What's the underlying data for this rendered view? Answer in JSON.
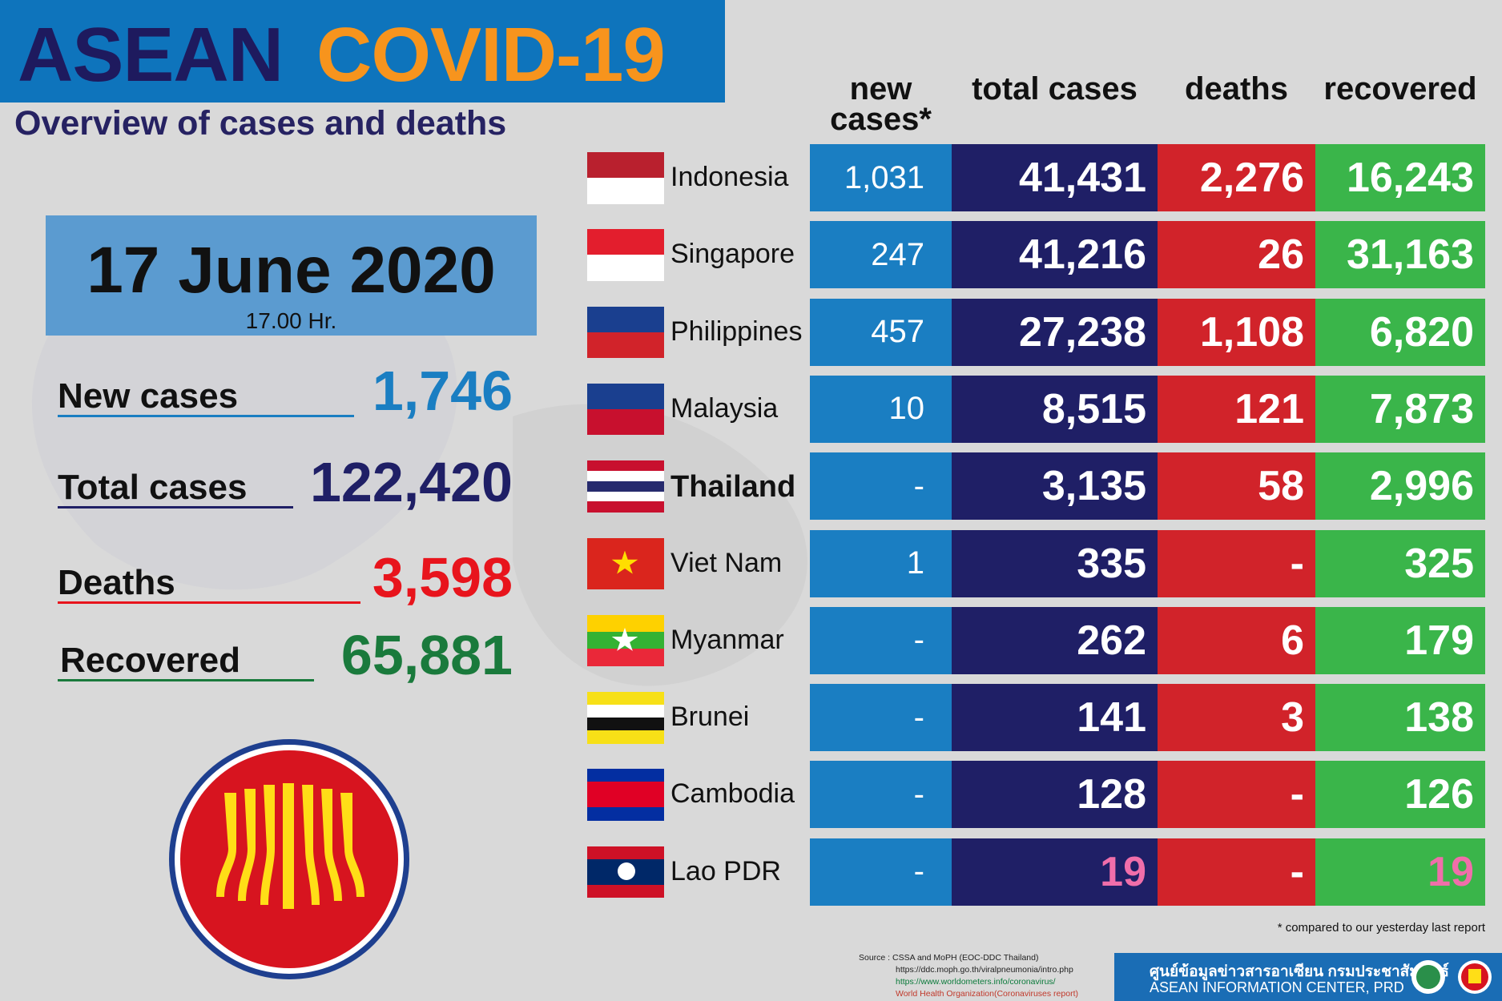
{
  "header": {
    "title_main": "ASEAN",
    "title_accent": "COVID-19",
    "subtitle": "Overview of cases and deaths"
  },
  "date": {
    "day": "17 June 2020",
    "time": "17.00 Hr."
  },
  "summary": [
    {
      "label": "New cases",
      "value": "1,746"
    },
    {
      "label": "Total cases",
      "value": "122,420"
    },
    {
      "label": "Deaths",
      "value": "3,598"
    },
    {
      "label": "Recovered",
      "value": "65,881"
    }
  ],
  "table": {
    "columns": [
      "new cases*",
      "total cases",
      "deaths",
      "recovered"
    ],
    "rows": [
      {
        "country": "Indonesia",
        "cells": [
          "1,031",
          "41,431",
          "2,276",
          "16,243"
        ]
      },
      {
        "country": "Singapore",
        "cells": [
          "247",
          "41,216",
          "26",
          "31,163"
        ]
      },
      {
        "country": "Philippines",
        "cells": [
          "457",
          "27,238",
          "1,108",
          "6,820"
        ]
      },
      {
        "country": "Malaysia",
        "cells": [
          "10",
          "8,515",
          "121",
          "7,873"
        ]
      },
      {
        "country": "Thailand",
        "cells": [
          "-",
          "3,135",
          "58",
          "2,996"
        ]
      },
      {
        "country": "Viet Nam",
        "cells": [
          "1",
          "335",
          "-",
          "325"
        ]
      },
      {
        "country": "Myanmar",
        "cells": [
          "-",
          "262",
          "6",
          "179"
        ]
      },
      {
        "country": "Brunei",
        "cells": [
          "-",
          "141",
          "3",
          "138"
        ]
      },
      {
        "country": "Cambodia",
        "cells": [
          "-",
          "128",
          "-",
          "126"
        ]
      },
      {
        "country": "Lao PDR",
        "cells": [
          "-",
          "19",
          "-",
          "19"
        ]
      }
    ],
    "footnote": "* compared to our yesterday last report"
  },
  "source": [
    "Source : CSSA and MoPH (EOC-DDC Thailand)",
    "https://ddc.moph.go.th/viralpneumonia/intro.php",
    "https://www.worldometers.info/coronavirus/",
    "World Health Organization(Coronaviruses report)"
  ],
  "footer": {
    "thai": "ศูนย์ข้อมูลข่าวสารอาเซียน กรมประชาสัมพันธ์",
    "english": "ASEAN INFORMATION CENTER, PRD"
  }
}
